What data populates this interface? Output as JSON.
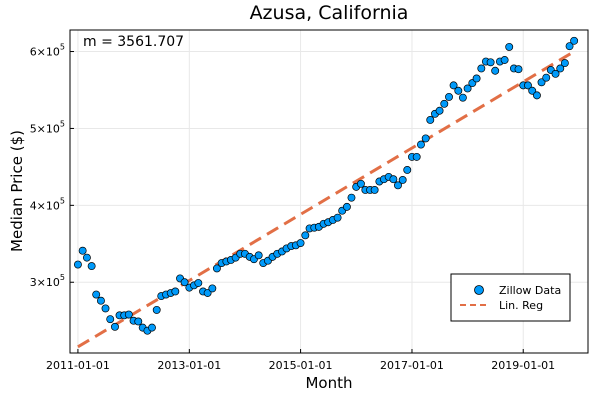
{
  "chart_data": {
    "type": "scatter",
    "title": "Azusa, California",
    "xlabel": "Month",
    "ylabel": "Median Price ($)",
    "annotation": "m = 3561.707",
    "x_ticks": [
      "2011-01-01",
      "2013-01-01",
      "2015-01-01",
      "2017-01-01",
      "2019-01-01"
    ],
    "y_ticks": [
      {
        "value": 300000,
        "base": "3×10",
        "exp": "5"
      },
      {
        "value": 400000,
        "base": "4×10",
        "exp": "5"
      },
      {
        "value": 500000,
        "base": "5×10",
        "exp": "5"
      },
      {
        "value": 600000,
        "base": "6×10",
        "exp": "5"
      }
    ],
    "xlim": [
      "2010-11-10",
      "2020-03-01"
    ],
    "ylim": [
      208000,
      628000
    ],
    "grid": true,
    "legend_position": "bottom-right",
    "series": [
      {
        "name": "Zillow Data",
        "style": "scatter",
        "color": "#009AFA",
        "x": [
          "2011-01-01",
          "2011-02-01",
          "2011-03-01",
          "2011-04-01",
          "2011-05-01",
          "2011-06-01",
          "2011-07-01",
          "2011-08-01",
          "2011-09-01",
          "2011-10-01",
          "2011-11-01",
          "2011-12-01",
          "2012-01-01",
          "2012-02-01",
          "2012-03-01",
          "2012-04-01",
          "2012-05-01",
          "2012-06-01",
          "2012-07-01",
          "2012-08-01",
          "2012-09-01",
          "2012-10-01",
          "2012-11-01",
          "2012-12-01",
          "2013-01-01",
          "2013-02-01",
          "2013-03-01",
          "2013-04-01",
          "2013-05-01",
          "2013-06-01",
          "2013-07-01",
          "2013-08-01",
          "2013-09-01",
          "2013-10-01",
          "2013-11-01",
          "2013-12-01",
          "2014-01-01",
          "2014-02-01",
          "2014-03-01",
          "2014-04-01",
          "2014-05-01",
          "2014-06-01",
          "2014-07-01",
          "2014-08-01",
          "2014-09-01",
          "2014-10-01",
          "2014-11-01",
          "2014-12-01",
          "2015-01-01",
          "2015-02-01",
          "2015-03-01",
          "2015-04-01",
          "2015-05-01",
          "2015-06-01",
          "2015-07-01",
          "2015-08-01",
          "2015-09-01",
          "2015-10-01",
          "2015-11-01",
          "2015-12-01",
          "2016-01-01",
          "2016-02-01",
          "2016-03-01",
          "2016-04-01",
          "2016-05-01",
          "2016-06-01",
          "2016-07-01",
          "2016-08-01",
          "2016-09-01",
          "2016-10-01",
          "2016-11-01",
          "2016-12-01",
          "2017-01-01",
          "2017-02-01",
          "2017-03-01",
          "2017-04-01",
          "2017-05-01",
          "2017-06-01",
          "2017-07-01",
          "2017-08-01",
          "2017-09-01",
          "2017-10-01",
          "2017-11-01",
          "2017-12-01",
          "2018-01-01",
          "2018-02-01",
          "2018-03-01",
          "2018-04-01",
          "2018-05-01",
          "2018-06-01",
          "2018-07-01",
          "2018-08-01",
          "2018-09-01",
          "2018-10-01",
          "2018-11-01",
          "2018-12-01",
          "2019-01-01",
          "2019-02-01",
          "2019-03-01",
          "2019-04-01",
          "2019-05-01",
          "2019-06-01",
          "2019-07-01",
          "2019-08-01",
          "2019-09-01",
          "2019-10-01",
          "2019-11-01",
          "2019-12-01"
        ],
        "y": [
          323000,
          341000,
          332000,
          321000,
          284000,
          276000,
          266000,
          252000,
          242000,
          257000,
          257000,
          258000,
          250000,
          249000,
          241000,
          237000,
          241000,
          264000,
          282000,
          284000,
          286000,
          288000,
          305000,
          300000,
          293000,
          296000,
          299000,
          288000,
          286000,
          292000,
          318000,
          325000,
          327000,
          329000,
          332000,
          337000,
          337000,
          333000,
          330000,
          335000,
          325000,
          328000,
          333000,
          337000,
          340000,
          344000,
          347000,
          348000,
          351000,
          361000,
          370000,
          371000,
          372000,
          376000,
          378000,
          381000,
          384000,
          393000,
          398000,
          410000,
          424000,
          428000,
          420000,
          420000,
          420000,
          431000,
          434000,
          437000,
          434000,
          426000,
          433000,
          446000,
          463000,
          463000,
          479000,
          487000,
          511000,
          519000,
          523000,
          532000,
          541000,
          556000,
          549000,
          540000,
          552000,
          559000,
          565000,
          578000,
          587000,
          586000,
          575000,
          587000,
          589000,
          606000,
          578000,
          577000,
          556000,
          556000,
          549000,
          543000,
          560000,
          566000,
          576000,
          571000,
          578000,
          585000,
          607000,
          614000
        ]
      },
      {
        "name": "Lin. Reg",
        "style": "dashed-line",
        "color": "#E26F46",
        "x": [
          "2011-01-01",
          "2019-12-01"
        ],
        "y": [
          216000,
          600000
        ]
      }
    ]
  }
}
